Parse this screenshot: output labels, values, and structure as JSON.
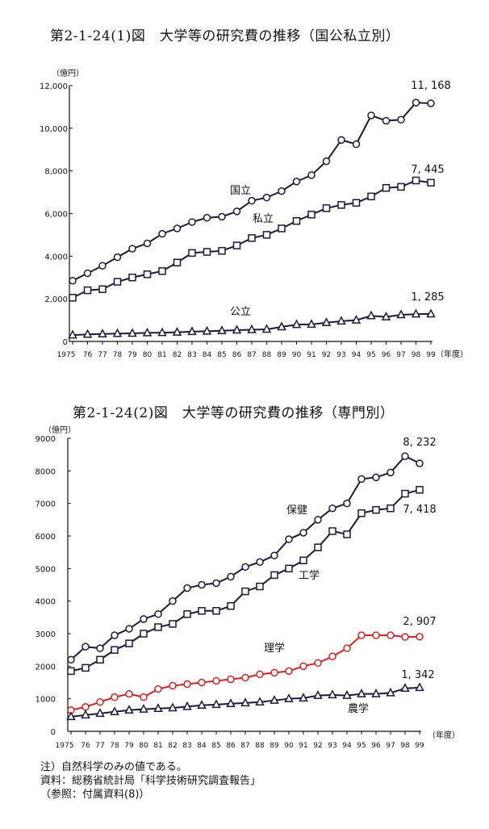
{
  "notes": {
    "note": "注）自然科学のみの値である。",
    "source": "資料：総務省統計局「科学技術研究調査報告」",
    "reference": "（参照：付属資料(8)）"
  },
  "chart_data": [
    {
      "type": "line",
      "title": "第2-1-24(1)図　大学等の研究費の推移（国公私立別）",
      "ylabel": "（億円）",
      "xlabel": "（年度）",
      "ylim": [
        0,
        12000
      ],
      "yticks": [
        "0",
        "2,000",
        "4,000",
        "6,000",
        "8,000",
        "10,000",
        "12,000"
      ],
      "yticks_values": [
        0,
        2000,
        4000,
        6000,
        8000,
        10000,
        12000
      ],
      "categories": [
        "1975",
        "76",
        "77",
        "78",
        "79",
        "80",
        "81",
        "82",
        "83",
        "84",
        "85",
        "86",
        "87",
        "88",
        "89",
        "90",
        "91",
        "92",
        "93",
        "94",
        "95",
        "96",
        "97",
        "98",
        "99"
      ],
      "grid": false,
      "series": [
        {
          "name": "国立",
          "marker": "circle",
          "color": "#1a1a3a",
          "end_label": "11, 168",
          "values": [
            2850,
            3200,
            3550,
            3950,
            4350,
            4600,
            5050,
            5300,
            5600,
            5800,
            5850,
            6100,
            6600,
            6750,
            7050,
            7500,
            7800,
            8450,
            9450,
            9250,
            10600,
            10350,
            10400,
            11200,
            11168
          ]
        },
        {
          "name": "私立",
          "marker": "square",
          "color": "#1a1a3a",
          "end_label": "7, 445",
          "values": [
            2050,
            2400,
            2450,
            2800,
            3000,
            3150,
            3300,
            3700,
            4150,
            4200,
            4250,
            4500,
            4850,
            5000,
            5300,
            5650,
            5950,
            6250,
            6400,
            6500,
            6800,
            7200,
            7250,
            7550,
            7445
          ]
        },
        {
          "name": "公立",
          "marker": "triangle",
          "color": "#1a1a3a",
          "end_label": "1, 285",
          "values": [
            300,
            330,
            350,
            370,
            380,
            400,
            410,
            430,
            460,
            480,
            500,
            530,
            550,
            570,
            680,
            790,
            800,
            880,
            950,
            1000,
            1200,
            1150,
            1250,
            1280,
            1285
          ]
        }
      ]
    },
    {
      "type": "line",
      "title": "第2-1-24(2)図　大学等の研究費の推移（専門別）",
      "ylabel": "（億円）",
      "xlabel": "（年度）",
      "ylim": [
        0,
        9000
      ],
      "yticks": [
        "0",
        "1000",
        "2000",
        "3000",
        "4000",
        "5000",
        "6000",
        "7000",
        "8000",
        "9000"
      ],
      "yticks_values": [
        0,
        1000,
        2000,
        3000,
        4000,
        5000,
        6000,
        7000,
        8000,
        9000
      ],
      "categories": [
        "1975",
        "76",
        "77",
        "78",
        "79",
        "80",
        "81",
        "82",
        "83",
        "84",
        "85",
        "86",
        "87",
        "88",
        "89",
        "90",
        "91",
        "92",
        "93",
        "94",
        "95",
        "96",
        "97",
        "98",
        "99"
      ],
      "grid": false,
      "series": [
        {
          "name": "保健",
          "marker": "circle",
          "color": "#1a1a3a",
          "end_label": "8, 232",
          "values": [
            2200,
            2600,
            2550,
            2950,
            3150,
            3450,
            3600,
            4000,
            4400,
            4500,
            4550,
            4750,
            5050,
            5200,
            5400,
            5900,
            6100,
            6500,
            6850,
            7000,
            7750,
            7800,
            7950,
            8450,
            8232
          ]
        },
        {
          "name": "工学",
          "marker": "square",
          "color": "#1a1a3a",
          "end_label": "7, 418",
          "values": [
            1850,
            1950,
            2200,
            2500,
            2700,
            3000,
            3200,
            3300,
            3600,
            3700,
            3700,
            3850,
            4300,
            4450,
            4800,
            5000,
            5250,
            5650,
            6150,
            6050,
            6700,
            6800,
            6850,
            7300,
            7418
          ]
        },
        {
          "name": "理学",
          "marker": "circle",
          "color": "#e02020",
          "end_label": "2, 907",
          "values": [
            650,
            750,
            900,
            1050,
            1150,
            1050,
            1300,
            1400,
            1450,
            1500,
            1550,
            1600,
            1650,
            1750,
            1800,
            1850,
            2000,
            2100,
            2300,
            2550,
            2950,
            2950,
            2950,
            2900,
            2907
          ]
        },
        {
          "name": "農学",
          "marker": "triangle",
          "color": "#1a1a3a",
          "end_label": "1, 342",
          "values": [
            450,
            500,
            550,
            600,
            650,
            680,
            700,
            720,
            760,
            800,
            820,
            850,
            870,
            900,
            950,
            1000,
            1020,
            1100,
            1120,
            1100,
            1150,
            1150,
            1180,
            1320,
            1342
          ]
        }
      ]
    }
  ]
}
